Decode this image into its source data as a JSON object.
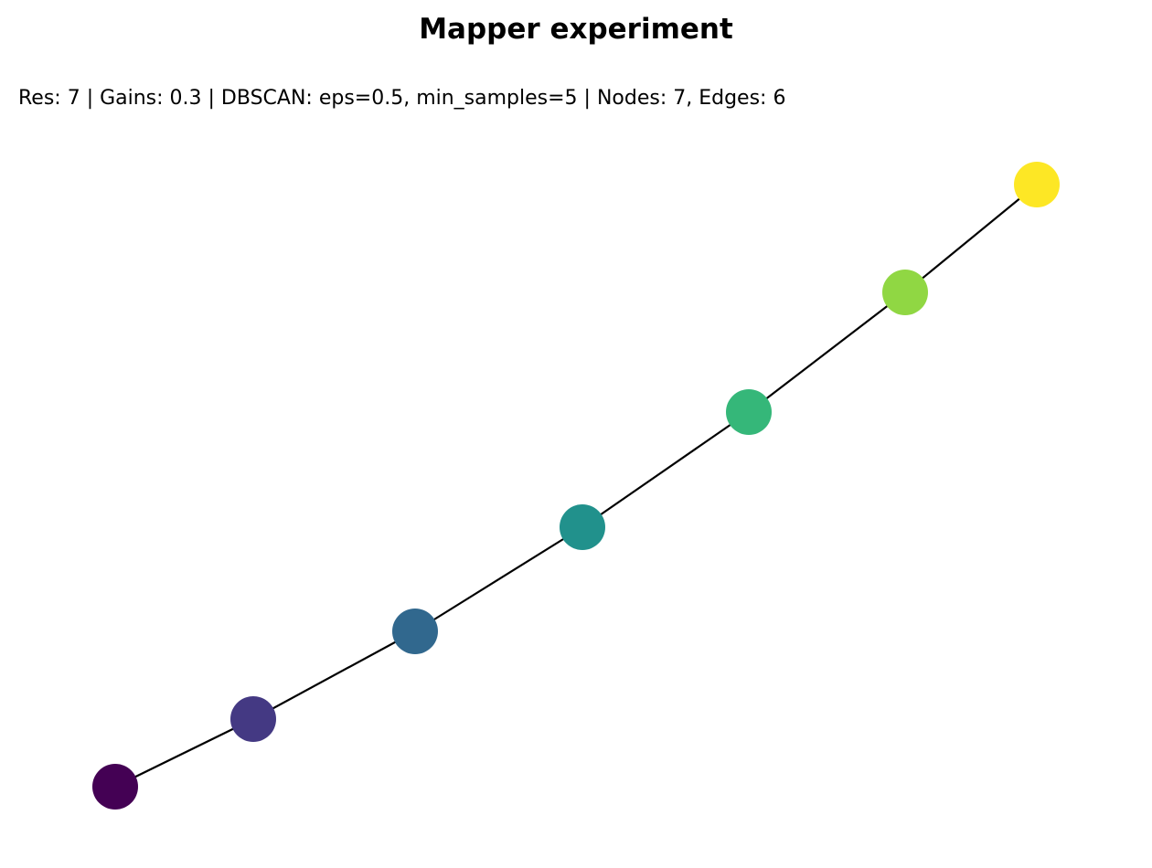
{
  "title": "Mapper experiment",
  "subtitle": "Res: 7 | Gains: 0.3 | DBSCAN: eps=0.5, min_samples=5 | Nodes: 7, Edges: 6",
  "graph": {
    "edge_color": "#000000",
    "nodes": [
      {
        "id": "n0",
        "color": "#440154"
      },
      {
        "id": "n1",
        "color": "#443983"
      },
      {
        "id": "n2",
        "color": "#31688e"
      },
      {
        "id": "n3",
        "color": "#21918c"
      },
      {
        "id": "n4",
        "color": "#35b779"
      },
      {
        "id": "n5",
        "color": "#90d743"
      },
      {
        "id": "n6",
        "color": "#fde725"
      }
    ],
    "edges": [
      [
        "n0",
        "n1"
      ],
      [
        "n1",
        "n2"
      ],
      [
        "n2",
        "n3"
      ],
      [
        "n3",
        "n4"
      ],
      [
        "n4",
        "n5"
      ],
      [
        "n5",
        "n6"
      ]
    ]
  }
}
